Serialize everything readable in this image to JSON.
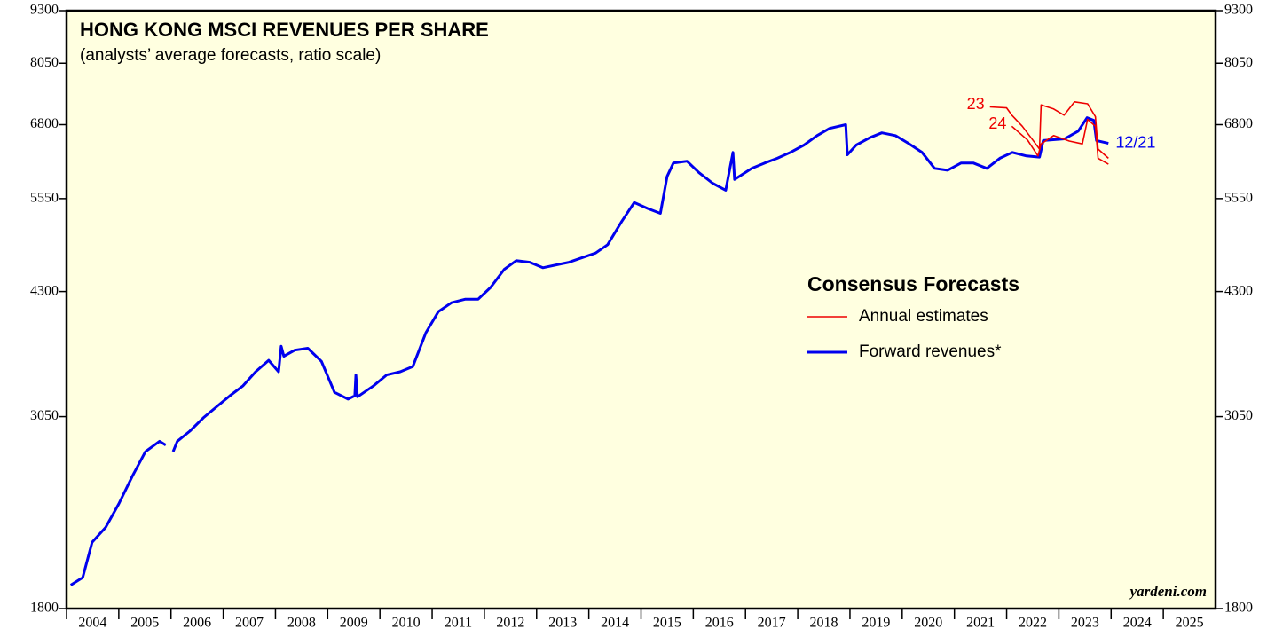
{
  "chart_data": {
    "type": "line",
    "title": "HONG KONG MSCI REVENUES PER SHARE",
    "subtitle": "(analysts’ average forecasts, ratio scale)",
    "legend_title": "Consensus Forecasts",
    "source": "yardeni.com",
    "log_scale": true,
    "ylim": [
      1800,
      9300
    ],
    "yticks": [
      1800,
      3050,
      4300,
      5550,
      6800,
      8050,
      9300
    ],
    "xlim": [
      2004,
      2026
    ],
    "xticks": [
      2004,
      2005,
      2006,
      2007,
      2008,
      2009,
      2010,
      2011,
      2012,
      2013,
      2014,
      2015,
      2016,
      2017,
      2018,
      2019,
      2020,
      2021,
      2022,
      2023,
      2024,
      2025
    ],
    "series": [
      {
        "name": "Forward revenues*",
        "color": "#0000ee",
        "label": "12/21",
        "x": [
          2004.08,
          2004.31,
          2004.49,
          2004.75,
          2005.0,
          2005.26,
          2005.51,
          2005.78,
          2005.9,
          2005.95,
          2006.04,
          2006.12,
          2006.36,
          2006.62,
          2007.13,
          2007.38,
          2007.62,
          2007.87,
          2008.06,
          2008.11,
          2008.16,
          2008.37,
          2008.62,
          2008.88,
          2009.13,
          2009.39,
          2009.52,
          2009.54,
          2009.57,
          2009.88,
          2010.13,
          2010.39,
          2010.63,
          2010.88,
          2011.12,
          2011.37,
          2011.63,
          2011.88,
          2012.12,
          2012.38,
          2012.61,
          2012.87,
          2013.12,
          2013.62,
          2014.13,
          2014.36,
          2014.62,
          2014.87,
          2015.13,
          2015.37,
          2015.5,
          2015.62,
          2015.88,
          2016.11,
          2016.37,
          2016.62,
          2016.76,
          2016.79,
          2017.12,
          2017.37,
          2017.61,
          2017.86,
          2018.12,
          2018.37,
          2018.61,
          2018.92,
          2018.95,
          2019.12,
          2019.38,
          2019.61,
          2019.87,
          2020.12,
          2020.38,
          2020.62,
          2020.87,
          2021.13,
          2021.36,
          2021.62,
          2021.87,
          2022.11,
          2022.38,
          2022.63,
          2022.7,
          2023.11,
          2023.37,
          2023.54,
          2023.67,
          2023.72,
          2023.95
        ],
        "values": [
          1920,
          1960,
          2160,
          2250,
          2400,
          2590,
          2770,
          2850,
          2820,
          null,
          2770,
          2850,
          2930,
          3040,
          3230,
          3320,
          3450,
          3560,
          3450,
          3700,
          3600,
          3660,
          3680,
          3550,
          3260,
          3200,
          3230,
          3420,
          3220,
          3320,
          3420,
          3450,
          3500,
          3840,
          4070,
          4170,
          4210,
          4210,
          4350,
          4570,
          4680,
          4660,
          4590,
          4660,
          4780,
          4890,
          5200,
          5490,
          5400,
          5330,
          5900,
          6120,
          6150,
          5960,
          5790,
          5680,
          6300,
          5850,
          6030,
          6120,
          6200,
          6300,
          6430,
          6600,
          6730,
          6800,
          6260,
          6430,
          6560,
          6650,
          6600,
          6460,
          6300,
          6030,
          6000,
          6120,
          6120,
          6030,
          6200,
          6300,
          6240,
          6220,
          6510,
          6540,
          6680,
          6930,
          6880,
          6510,
          6460
        ]
      },
      {
        "name": "Annual estimates",
        "color": "#ee0000",
        "label": "23",
        "x": [
          2021.68,
          2022.0,
          2022.1,
          2022.3,
          2022.5,
          2022.63,
          2022.66,
          2022.9,
          2023.1,
          2023.3,
          2023.55,
          2023.7,
          2023.75,
          2023.95
        ],
        "values": [
          7140,
          7120,
          6980,
          6770,
          6520,
          6360,
          7180,
          7100,
          6980,
          7240,
          7200,
          6950,
          6360,
          6200
        ]
      },
      {
        "name": "Annual estimates",
        "color": "#ee0000",
        "label": "24",
        "x": [
          2022.1,
          2022.4,
          2022.6,
          2022.66,
          2022.9,
          2023.2,
          2023.45,
          2023.55,
          2023.7,
          2023.75,
          2023.95
        ],
        "values": [
          6770,
          6520,
          6240,
          6450,
          6600,
          6500,
          6450,
          6900,
          6770,
          6200,
          6100
        ]
      }
    ]
  }
}
